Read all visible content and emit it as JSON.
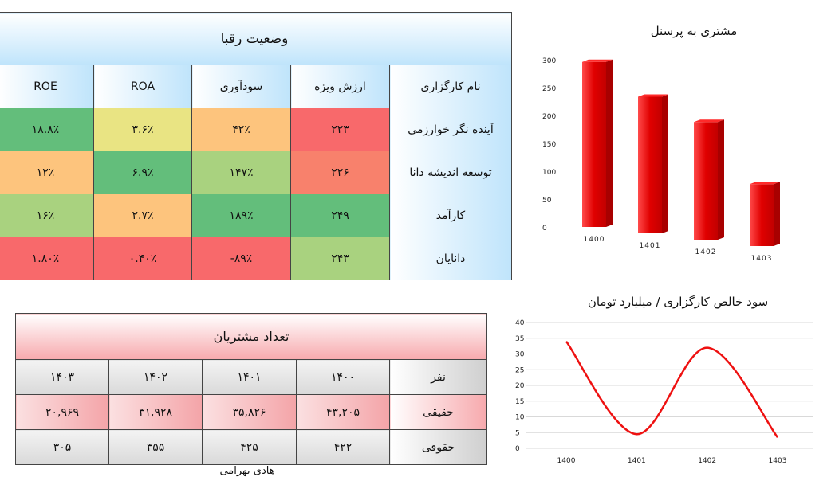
{
  "competitors": {
    "title": "وضعیت رقبا",
    "headers": [
      "ROE",
      "ROA",
      "سودآوری",
      "ارزش ویژه",
      "نام کارگزاری"
    ],
    "rows": [
      {
        "name": "آینده نگر خوارزمی",
        "equity": "۲۲۳",
        "profit": "۴۲٪",
        "roa": "۳.۶٪",
        "roe": "۱۸.۸٪"
      },
      {
        "name": "توسعه اندیشه دانا",
        "equity": "۲۲۶",
        "profit": "۱۴۷٪",
        "roa": "۶.۹٪",
        "roe": "۱۲٪"
      },
      {
        "name": "کارآمد",
        "equity": "۲۴۹",
        "profit": "۱۸۹٪",
        "roa": "۲.۷٪",
        "roe": "۱۶٪"
      },
      {
        "name": "دانایان",
        "equity": "۲۴۳",
        "profit": "-۸۹٪",
        "roa": "۰.۴۰٪",
        "roe": "۱.۸۰٪"
      }
    ],
    "colors": {
      "green": "#63be7b",
      "lightgreen": "#a9d27f",
      "yellow": "#e9e483",
      "orange": "#fdc47d",
      "salmon": "#f8816c",
      "red": "#f8696b"
    }
  },
  "customers": {
    "title": "تعداد مشتریان",
    "rows": [
      {
        "label": "نفر",
        "values": [
          "۱۴۰۰",
          "۱۴۰۱",
          "۱۴۰۲",
          "۱۴۰۳"
        ]
      },
      {
        "label": "حقیقی",
        "values": [
          "۴۳,۲۰۵",
          "۳۵,۸۲۶",
          "۳۱,۹۲۸",
          "۲۰,۹۶۹"
        ]
      },
      {
        "label": "حقوقی",
        "values": [
          "۴۲۲",
          "۴۲۵",
          "۳۵۵",
          "۳۰۵"
        ]
      }
    ]
  },
  "footer": {
    "author": "هادی بهرامی"
  },
  "chart_data": [
    {
      "type": "bar",
      "title": "مشتری به پرسنل",
      "categories": [
        "1400",
        "1401",
        "1402",
        "1403"
      ],
      "values": [
        296,
        245,
        211,
        111
      ],
      "ylim": [
        0,
        300
      ],
      "yticks": [
        "0",
        "50",
        "100",
        "150",
        "200",
        "250",
        "300"
      ],
      "color": "#e00000",
      "grid": false
    },
    {
      "type": "line",
      "title": "سود خالص کارگزاری / میلیارد تومان",
      "categories": [
        "1400",
        "1401",
        "1402",
        "1403"
      ],
      "values": [
        34,
        4.5,
        32,
        3.5
      ],
      "ylim": [
        0,
        40
      ],
      "yticks": [
        "0",
        "5",
        "10",
        "15",
        "20",
        "25",
        "30",
        "35",
        "40"
      ],
      "color": "#ee1111",
      "grid": true
    }
  ]
}
